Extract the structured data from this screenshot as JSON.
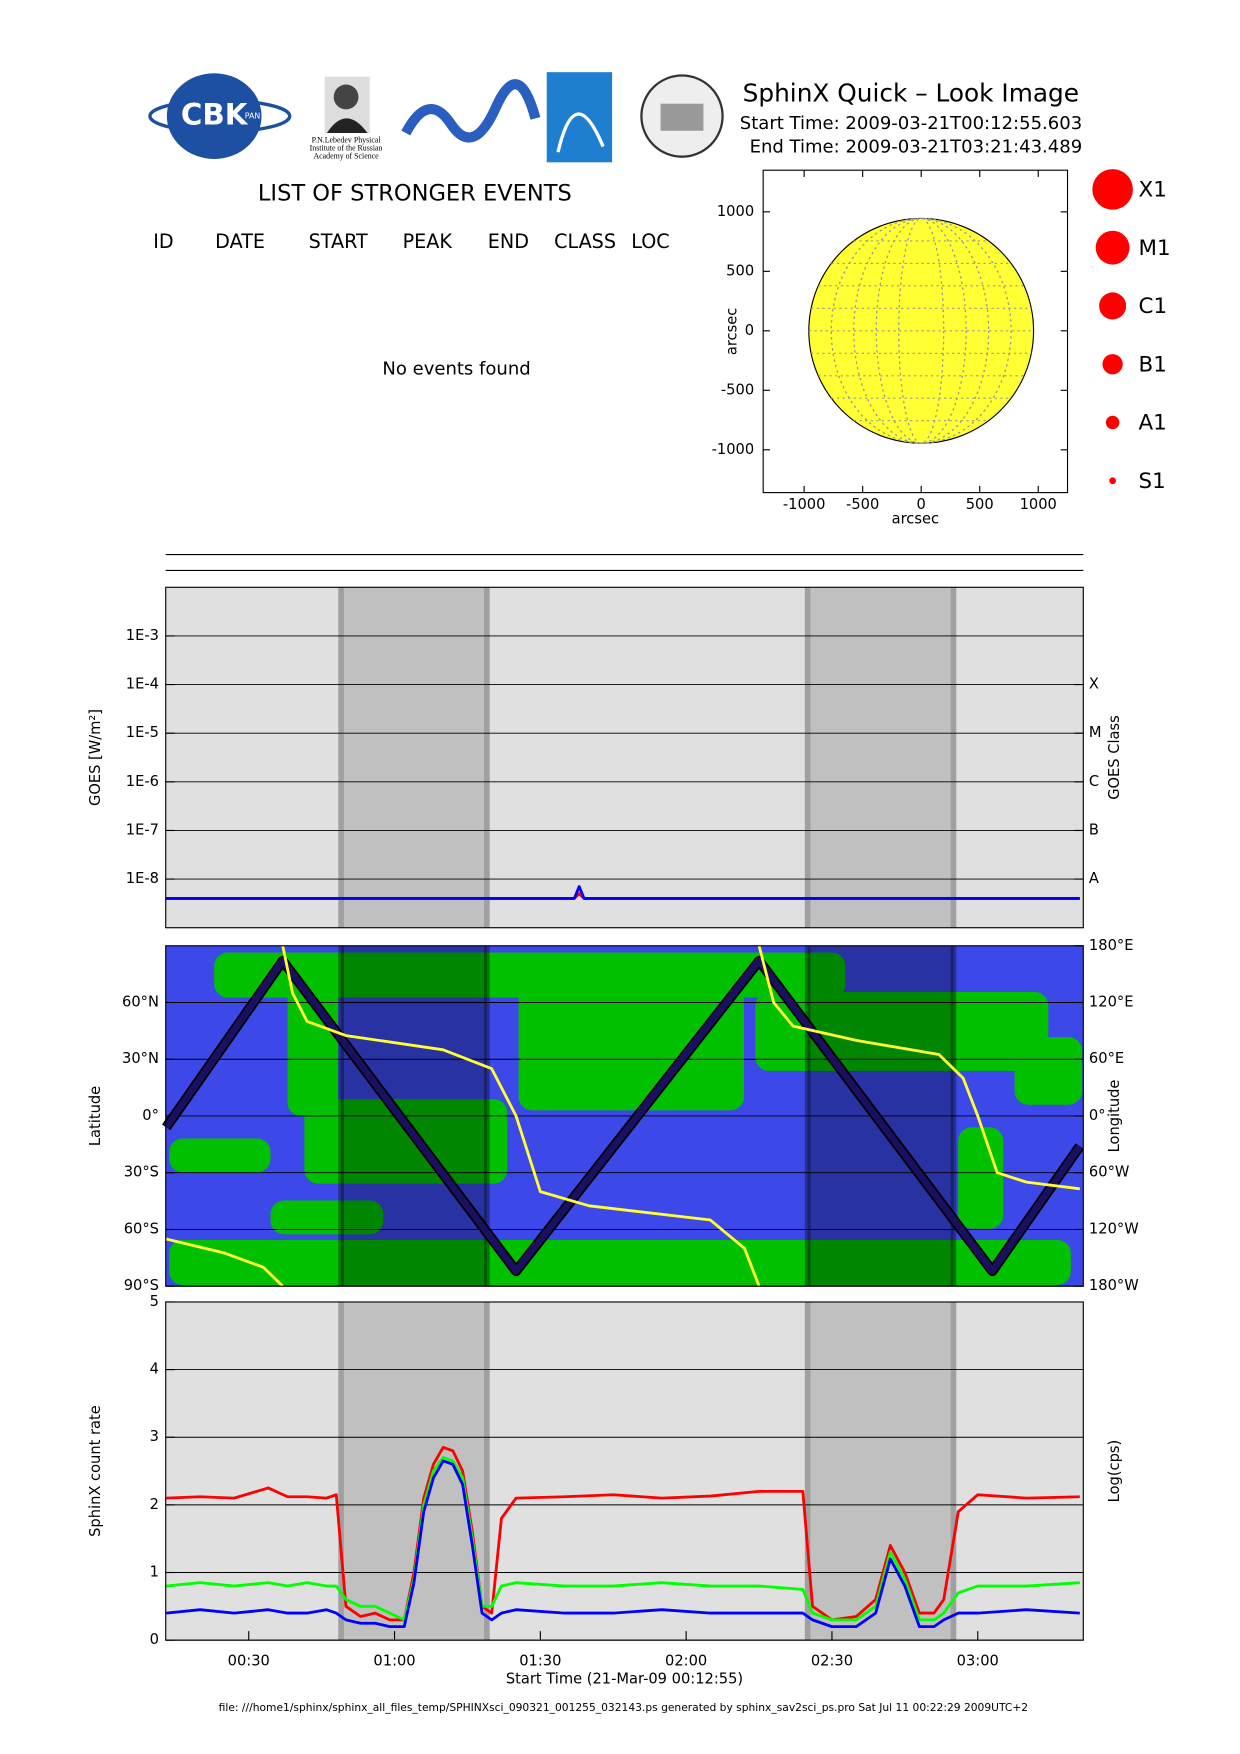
{
  "header": {
    "title": "SphinX Quick – Look Image",
    "start": "Start Time: 2009-03-21T00:12:55.603",
    "end": "End Time: 2009-03-21T03:21:43.489",
    "logo_texts": [
      "CBK",
      "PAN",
      "P.N.Lebedev Physical",
      "Institute of the Russian",
      "Academy of Science"
    ]
  },
  "events": {
    "title": "LIST OF STRONGER EVENTS",
    "columns": [
      "ID",
      "DATE",
      "START",
      "PEAK",
      "END",
      "CLASS",
      "LOC"
    ],
    "message": "No events found"
  },
  "flare_classes": {
    "labels": [
      "X1",
      "M1",
      "C1",
      "B1",
      "A1",
      "S1"
    ],
    "color": "#ff0000"
  },
  "footer": "file: ///home1/sphinx/sphinx_all_files_temp/SPHINXsci_090321_001255_032143.ps generated by sphinx_sav2sci_ps.pro Sat Jul 11 00:22:29 2009UTC+2",
  "chart_data": [
    {
      "type": "sun",
      "xlabel": "arcsec",
      "ylabel": "arcsec",
      "xlim": [
        -1350,
        1250
      ],
      "ylim": [
        -1360,
        1350
      ],
      "xticks": [
        -1000,
        -500,
        0,
        500,
        1000
      ],
      "yticks": [
        -1000,
        -500,
        0,
        500,
        1000
      ],
      "sun_radius": 960,
      "color": "#ffff33"
    },
    {
      "type": "line",
      "log_scale": true,
      "grid": true,
      "ylabel": "GOES [W/m²]",
      "y2label": "GOES Class",
      "xlim": [
        "00:12:55",
        "03:21:43"
      ],
      "ylim": [
        1e-09,
        0.01
      ],
      "yticks": [
        {
          "value": 1e-08,
          "label": "1E-8"
        },
        {
          "value": 1e-07,
          "label": "1E-7"
        },
        {
          "value": 1e-06,
          "label": "1E-6"
        },
        {
          "value": 1e-05,
          "label": "1E-5"
        },
        {
          "value": 0.0001,
          "label": "1E-4"
        },
        {
          "value": 0.001,
          "label": "1E-3"
        }
      ],
      "class_ticks": [
        {
          "value": 1e-08,
          "label": "A"
        },
        {
          "value": 1e-07,
          "label": "B"
        },
        {
          "value": 1e-06,
          "label": "C"
        },
        {
          "value": 1e-05,
          "label": "M"
        },
        {
          "value": 0.0001,
          "label": "X"
        }
      ],
      "bands": [
        [
          "00:49",
          "01:19"
        ],
        [
          "02:25",
          "02:55"
        ]
      ],
      "x": [
        "00:13",
        "00:30",
        "00:45",
        "01:00",
        "01:15",
        "01:30",
        "01:37",
        "01:38",
        "01:39",
        "01:50",
        "02:10",
        "02:30",
        "02:45",
        "03:00",
        "03:21"
      ],
      "series": [
        {
          "color": "#ff0000",
          "values": [
            4e-09,
            4e-09,
            4e-09,
            4e-09,
            4e-09,
            4e-09,
            4e-09,
            5e-09,
            4e-09,
            4e-09,
            4e-09,
            4e-09,
            4e-09,
            4e-09,
            4e-09
          ]
        },
        {
          "color": "#0000ff",
          "values": [
            4e-09,
            4e-09,
            4e-09,
            4e-09,
            4e-09,
            4e-09,
            4e-09,
            7e-09,
            4e-09,
            4e-09,
            4e-09,
            4e-09,
            4e-09,
            4e-09,
            4e-09
          ]
        }
      ]
    },
    {
      "type": "track",
      "grid": true,
      "ylabel": "Latitude",
      "y2label": "Longitude",
      "xlim": [
        "00:12:55",
        "03:21:43"
      ],
      "ylim": [
        -90,
        90
      ],
      "y2lim": [
        -180,
        180
      ],
      "yticks": [
        {
          "value": 60,
          "label": "60°N"
        },
        {
          "value": 30,
          "label": "30°N"
        },
        {
          "value": 0,
          "label": "0°"
        },
        {
          "value": -30,
          "label": "30°S"
        },
        {
          "value": -60,
          "label": "60°S"
        },
        {
          "value": -90,
          "label": "90°S"
        }
      ],
      "y2ticks": [
        {
          "value": 180,
          "label": "180°E"
        },
        {
          "value": 120,
          "label": "120°E"
        },
        {
          "value": 60,
          "label": "60°E"
        },
        {
          "value": 0,
          "label": "0°"
        },
        {
          "value": -60,
          "label": "60°W"
        },
        {
          "value": -120,
          "label": "120°W"
        },
        {
          "value": -180,
          "label": "180°W"
        }
      ],
      "bands": [
        [
          "00:49",
          "01:19"
        ],
        [
          "02:25",
          "02:55"
        ]
      ],
      "series": [
        {
          "color": "#1a1060",
          "x": [
            "00:13",
            "00:37",
            "01:25",
            "02:15",
            "03:03",
            "03:21"
          ],
          "values": [
            -6,
            82,
            -82,
            82,
            -82,
            -16
          ]
        },
        {
          "color": "#ffff33",
          "axis": "y2",
          "x": [
            "00:13",
            "00:25",
            "00:33",
            "00:37",
            "00:37",
            "00:37",
            "00:39",
            "00:42",
            "00:50",
            "01:10",
            "01:20",
            "01:25",
            "01:30",
            "01:40",
            "02:05",
            "02:12",
            "02:15",
            "02:15",
            "02:15",
            "02:18",
            "02:22",
            "02:35",
            "02:52",
            "02:57",
            "03:00",
            "03:04",
            "03:10",
            "03:21"
          ],
          "values": [
            -130,
            -145,
            -160,
            -180,
            null,
            180,
            130,
            100,
            85,
            70,
            50,
            0,
            -80,
            -95,
            -110,
            -140,
            -180,
            null,
            180,
            120,
            95,
            80,
            65,
            40,
            0,
            -60,
            -70,
            -77
          ]
        }
      ]
    },
    {
      "type": "line",
      "grid": true,
      "ylabel": "SphinX count rate",
      "y2label": "Log(cps)",
      "xlabel": "Start Time (21-Mar-09 00:12:55)",
      "xlim": [
        "00:12:55",
        "03:21:43"
      ],
      "xticks": [
        "00:30",
        "01:00",
        "01:30",
        "02:00",
        "02:30",
        "03:00"
      ],
      "ylim": [
        0,
        5
      ],
      "yticks": [
        0,
        1,
        2,
        3,
        4,
        5
      ],
      "bands": [
        [
          "00:49",
          "01:19"
        ],
        [
          "02:25",
          "02:55"
        ]
      ],
      "x": [
        "00:13",
        "00:20",
        "00:27",
        "00:34",
        "00:38",
        "00:42",
        "00:46",
        "00:48",
        "00:50",
        "00:53",
        "00:56",
        "00:59",
        "01:02",
        "01:04",
        "01:06",
        "01:08",
        "01:10",
        "01:12",
        "01:14",
        "01:16",
        "01:18",
        "01:20",
        "01:22",
        "01:25",
        "01:35",
        "01:45",
        "01:55",
        "02:05",
        "02:15",
        "02:24",
        "02:26",
        "02:30",
        "02:35",
        "02:39",
        "02:42",
        "02:45",
        "02:48",
        "02:51",
        "02:53",
        "02:56",
        "03:00",
        "03:10",
        "03:21"
      ],
      "series": [
        {
          "color": "#ff0000",
          "values": [
            2.1,
            2.12,
            2.1,
            2.25,
            2.12,
            2.12,
            2.1,
            2.15,
            0.5,
            0.35,
            0.4,
            0.3,
            0.3,
            1.0,
            2.1,
            2.6,
            2.85,
            2.8,
            2.5,
            1.6,
            0.5,
            0.4,
            1.8,
            2.1,
            2.12,
            2.15,
            2.1,
            2.13,
            2.2,
            2.2,
            0.5,
            0.3,
            0.35,
            0.6,
            1.4,
            1.0,
            0.4,
            0.4,
            0.6,
            1.9,
            2.15,
            2.1,
            2.12
          ]
        },
        {
          "color": "#00ff00",
          "values": [
            0.8,
            0.85,
            0.8,
            0.85,
            0.8,
            0.85,
            0.8,
            0.8,
            0.6,
            0.5,
            0.5,
            0.4,
            0.3,
            0.9,
            2.0,
            2.5,
            2.7,
            2.65,
            2.4,
            1.5,
            0.5,
            0.5,
            0.8,
            0.85,
            0.8,
            0.8,
            0.85,
            0.8,
            0.8,
            0.75,
            0.4,
            0.3,
            0.3,
            0.5,
            1.3,
            0.9,
            0.3,
            0.3,
            0.4,
            0.7,
            0.8,
            0.8,
            0.85
          ]
        },
        {
          "color": "#0000ff",
          "values": [
            0.4,
            0.45,
            0.4,
            0.45,
            0.4,
            0.4,
            0.45,
            0.4,
            0.3,
            0.25,
            0.25,
            0.2,
            0.2,
            0.85,
            1.9,
            2.4,
            2.65,
            2.6,
            2.3,
            1.4,
            0.4,
            0.3,
            0.4,
            0.45,
            0.4,
            0.4,
            0.45,
            0.4,
            0.4,
            0.4,
            0.3,
            0.2,
            0.2,
            0.4,
            1.2,
            0.8,
            0.2,
            0.2,
            0.3,
            0.4,
            0.4,
            0.45,
            0.4
          ]
        }
      ]
    }
  ]
}
